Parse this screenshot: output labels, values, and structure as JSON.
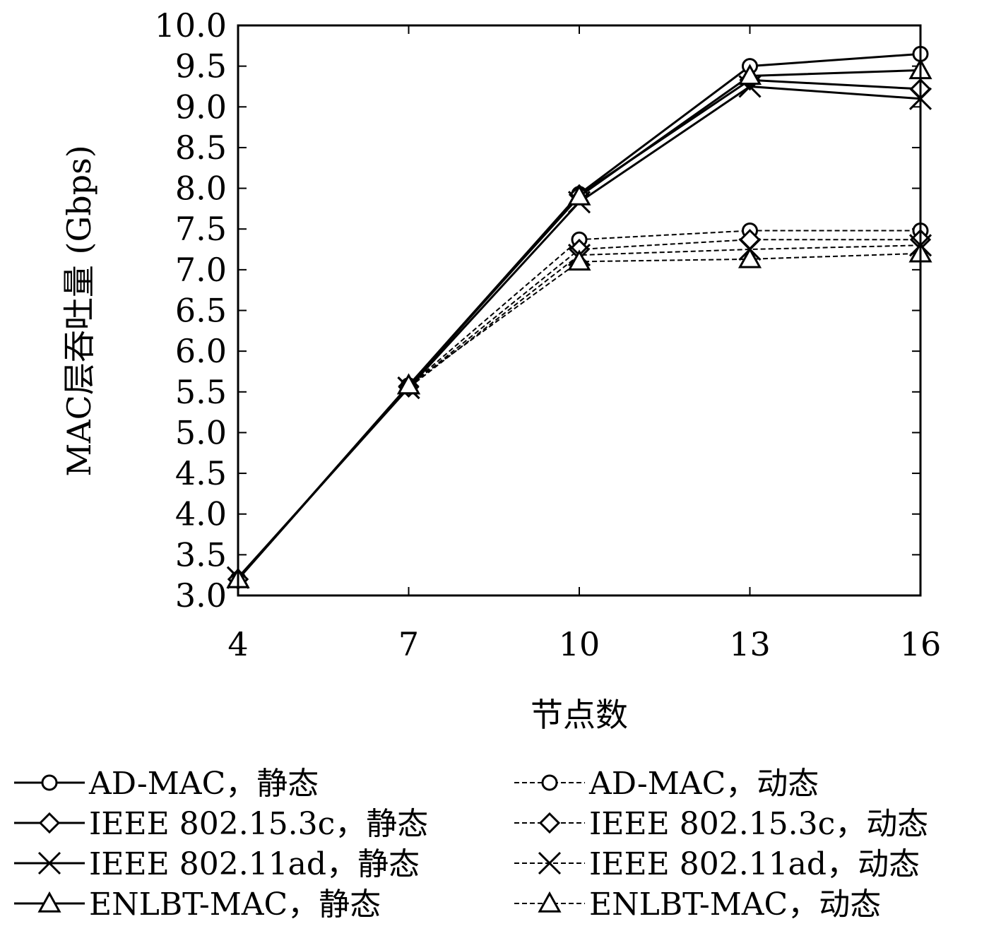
{
  "chart_data": {
    "type": "line",
    "title": "",
    "xlabel": "节点数",
    "ylabel": "MAC层吞吐量 (Gbps)",
    "x": [
      4,
      7,
      10,
      13,
      16
    ],
    "x_ticks": [
      "4",
      "7",
      "10",
      "13",
      "16"
    ],
    "y_ticks": [
      "3.0",
      "3.5",
      "4.0",
      "4.5",
      "5.0",
      "5.5",
      "6.0",
      "6.5",
      "7.0",
      "7.5",
      "8.0",
      "8.5",
      "9.0",
      "9.5",
      "10.0"
    ],
    "xlim": [
      4,
      16
    ],
    "ylim": [
      3.0,
      10.0
    ],
    "grid": false,
    "legend_position": "bottom",
    "series": [
      {
        "name": "AD-MAC，静态",
        "marker": "circle",
        "style": "solid",
        "values": [
          3.2,
          5.58,
          7.93,
          9.5,
          9.65
        ]
      },
      {
        "name": "IEEE 802.15.3c，静态",
        "marker": "diamond",
        "style": "solid",
        "values": [
          3.2,
          5.57,
          7.92,
          9.33,
          9.22
        ]
      },
      {
        "name": "IEEE 802.11ad，静态",
        "marker": "x",
        "style": "solid",
        "values": [
          3.22,
          5.55,
          7.83,
          9.25,
          9.1
        ]
      },
      {
        "name": "ENLBT-MAC，静态",
        "marker": "triangle",
        "style": "solid",
        "values": [
          3.2,
          5.58,
          7.9,
          9.38,
          9.45
        ]
      },
      {
        "name": "AD-MAC，动态",
        "marker": "circle",
        "style": "dashed",
        "values": [
          3.2,
          5.57,
          7.37,
          7.48,
          7.48
        ]
      },
      {
        "name": "IEEE 802.15.3c，动态",
        "marker": "diamond",
        "style": "dashed",
        "values": [
          3.2,
          5.56,
          7.25,
          7.37,
          7.37
        ]
      },
      {
        "name": "IEEE 802.11ad，动态",
        "marker": "x",
        "style": "dashed",
        "values": [
          3.22,
          5.55,
          7.18,
          7.25,
          7.3
        ]
      },
      {
        "name": "ENLBT-MAC，动态",
        "marker": "triangle",
        "style": "dashed",
        "values": [
          3.2,
          5.58,
          7.1,
          7.13,
          7.2
        ]
      }
    ]
  }
}
